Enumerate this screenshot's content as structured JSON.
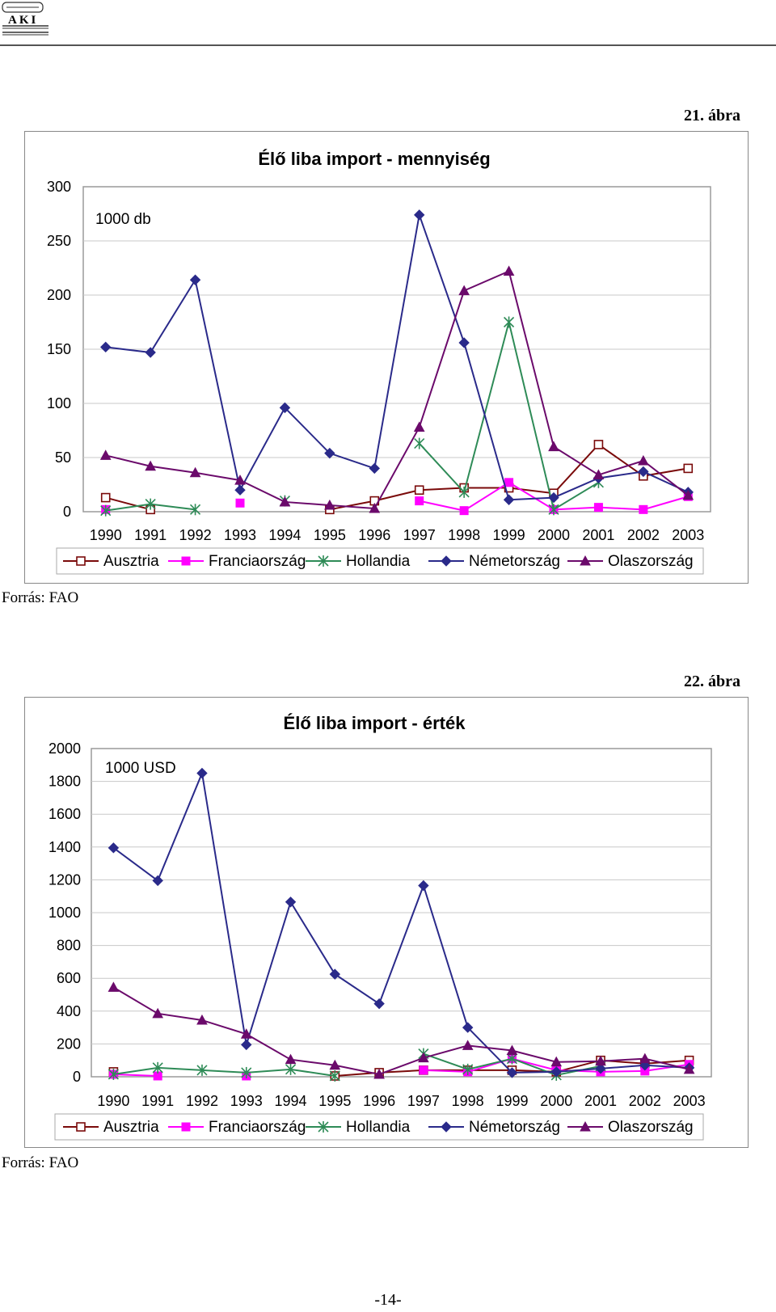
{
  "header": {
    "logo_text": "AKI"
  },
  "page_number": "-14-",
  "series_style": [
    {
      "name": "Ausztria",
      "color": "#7a0a0a",
      "marker": "square-open"
    },
    {
      "name": "Franciaország",
      "color": "#ff00ff",
      "marker": "square-filled"
    },
    {
      "name": "Hollandia",
      "color": "#2e8b57",
      "marker": "asterisk"
    },
    {
      "name": "Németország",
      "color": "#2a2a8a",
      "marker": "diamond"
    },
    {
      "name": "Olaszország",
      "color": "#6b0a6b",
      "marker": "triangle"
    }
  ],
  "figures": [
    {
      "label": "21. ábra",
      "source": "Forrás: FAO"
    },
    {
      "label": "22. ábra",
      "source": "Forrás: FAO"
    }
  ],
  "chart_data": [
    {
      "type": "line",
      "title": "Élő liba import - mennyiség",
      "unit": "1000 db",
      "ylim": [
        0,
        300
      ],
      "yticks": [
        0,
        50,
        100,
        150,
        200,
        250,
        300
      ],
      "categories": [
        "1990",
        "1991",
        "1992",
        "1993",
        "1994",
        "1995",
        "1996",
        "1997",
        "1998",
        "1999",
        "2000",
        "2001",
        "2002",
        "2003"
      ],
      "legend_position": "bottom",
      "grid": true,
      "series": [
        {
          "name": "Ausztria",
          "values": [
            13,
            2,
            null,
            null,
            null,
            2,
            10,
            20,
            22,
            22,
            17,
            62,
            33,
            40
          ]
        },
        {
          "name": "Franciaország",
          "values": [
            2,
            null,
            null,
            8,
            null,
            null,
            null,
            10,
            1,
            27,
            2,
            4,
            2,
            14
          ]
        },
        {
          "name": "Hollandia",
          "values": [
            1,
            7,
            2,
            null,
            10,
            null,
            null,
            63,
            18,
            175,
            2,
            27,
            null,
            null
          ]
        },
        {
          "name": "Németország",
          "values": [
            152,
            147,
            214,
            20,
            96,
            54,
            40,
            274,
            156,
            11,
            13,
            31,
            37,
            18
          ]
        },
        {
          "name": "Olaszország",
          "values": [
            52,
            42,
            36,
            29,
            9,
            6,
            3,
            78,
            204,
            222,
            60,
            34,
            47,
            15
          ]
        }
      ]
    },
    {
      "type": "line",
      "title": "Élő liba import - érték",
      "unit": "1000 USD",
      "ylim": [
        0,
        2000
      ],
      "yticks": [
        0,
        200,
        400,
        600,
        800,
        1000,
        1200,
        1400,
        1600,
        1800,
        2000
      ],
      "categories": [
        "1990",
        "1991",
        "1992",
        "1993",
        "1994",
        "1995",
        "1996",
        "1997",
        "1998",
        "1999",
        "2000",
        "2001",
        "2002",
        "2003"
      ],
      "legend_position": "bottom",
      "grid": true,
      "series": [
        {
          "name": "Ausztria",
          "values": [
            30,
            null,
            null,
            null,
            null,
            5,
            25,
            40,
            40,
            40,
            30,
            100,
            80,
            100
          ]
        },
        {
          "name": "Franciaország",
          "values": [
            15,
            5,
            null,
            5,
            null,
            null,
            null,
            40,
            30,
            110,
            40,
            30,
            35,
            75
          ]
        },
        {
          "name": "Hollandia",
          "values": [
            15,
            55,
            40,
            25,
            45,
            5,
            null,
            140,
            45,
            110,
            10,
            65,
            null,
            null
          ]
        },
        {
          "name": "Németország",
          "values": [
            1395,
            1195,
            1850,
            195,
            1065,
            625,
            445,
            1165,
            300,
            25,
            30,
            50,
            70,
            55
          ]
        },
        {
          "name": "Olaszország",
          "values": [
            545,
            385,
            345,
            260,
            105,
            70,
            15,
            115,
            190,
            160,
            90,
            95,
            110,
            45
          ]
        }
      ]
    }
  ]
}
